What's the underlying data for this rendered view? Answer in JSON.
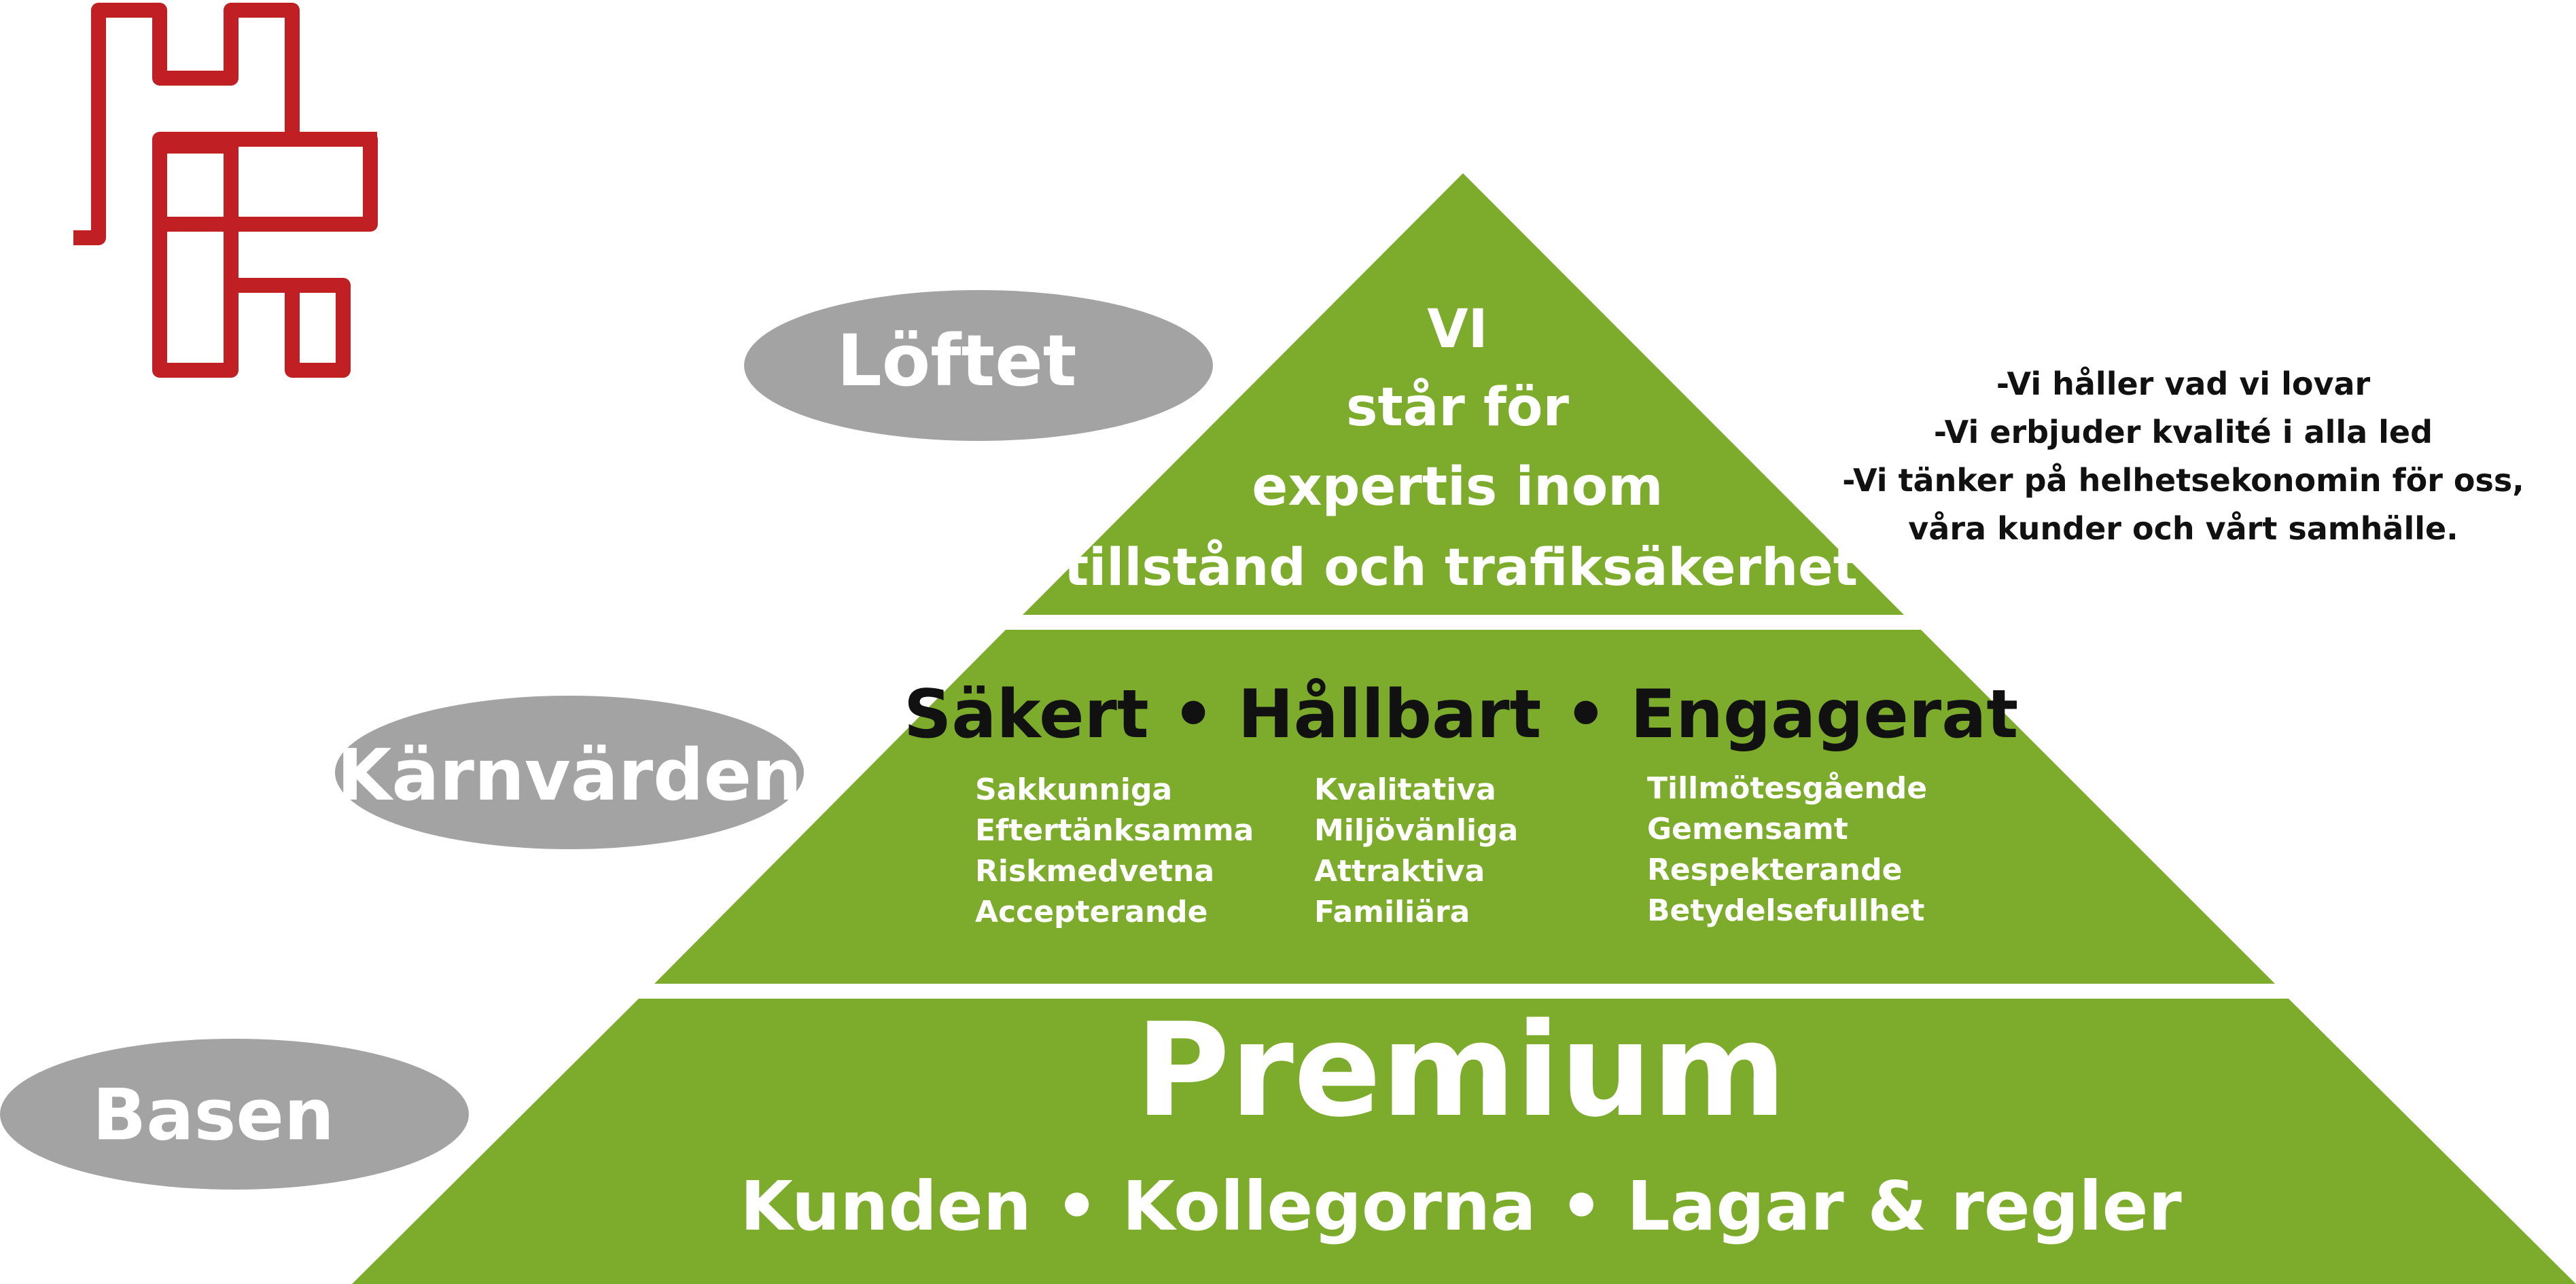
{
  "colors": {
    "green": "#7dac2d",
    "oval": "#a3a3a3",
    "logo": "#c01f24"
  },
  "logo": {
    "icon": "hh-logo-icon"
  },
  "labels": {
    "top": "Löftet",
    "middle": "Kärnvärden",
    "bottom": "Basen"
  },
  "top_tier": {
    "lines": [
      "VI",
      "står för",
      "expertis inom",
      "tillstånd och trafiksäkerhet"
    ]
  },
  "middle_tier": {
    "headline": "Säkert • Hållbart • Engagerat",
    "columns": [
      [
        "Sakkunniga",
        "Eftertänksamma",
        "Riskmedvetna",
        "Accepterande"
      ],
      [
        "Kvalitativa",
        "Miljövänliga",
        "Attraktiva",
        "Familiära"
      ],
      [
        "Tillmötesgående",
        "Gemensamt",
        "Respekterande",
        "Betydelsefullhet"
      ]
    ]
  },
  "bottom_tier": {
    "title": "Premium",
    "subtitle": "Kunden •  Kollegorna • Lagar & regler"
  },
  "promises": [
    "-Vi håller vad vi lovar",
    "-Vi erbjuder kvalité i alla led",
    "-Vi tänker på helhetsekonomin för oss,",
    "våra kunder och vårt samhälle."
  ]
}
